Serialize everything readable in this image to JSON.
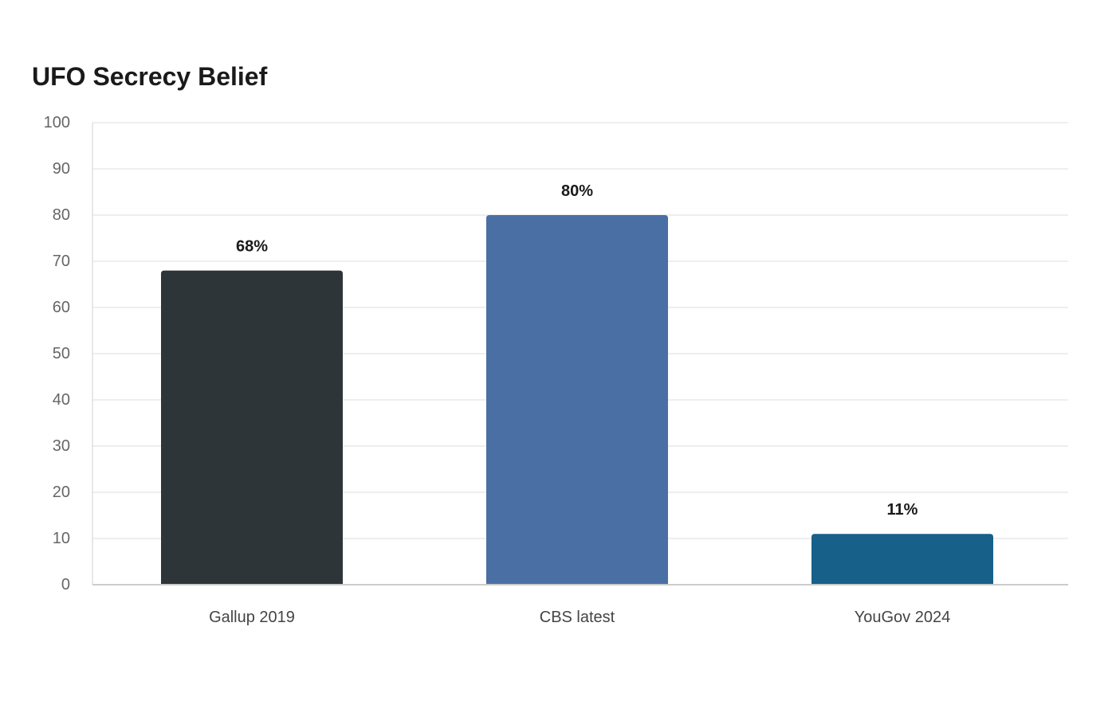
{
  "chart_data": {
    "type": "bar",
    "title": "UFO Secrecy Belief",
    "xlabel": "",
    "ylabel": "",
    "categories": [
      "Gallup 2019",
      "CBS latest",
      "YouGov 2024"
    ],
    "values": [
      68,
      80,
      11
    ],
    "data_labels": [
      "68%",
      "80%",
      "11%"
    ],
    "colors": [
      "#2e3538",
      "#4a6fa5",
      "#16608a"
    ],
    "ylim": [
      0,
      100
    ],
    "yticks": [
      0,
      10,
      20,
      30,
      40,
      50,
      60,
      70,
      80,
      90,
      100
    ],
    "grid": true,
    "legend": "none"
  }
}
